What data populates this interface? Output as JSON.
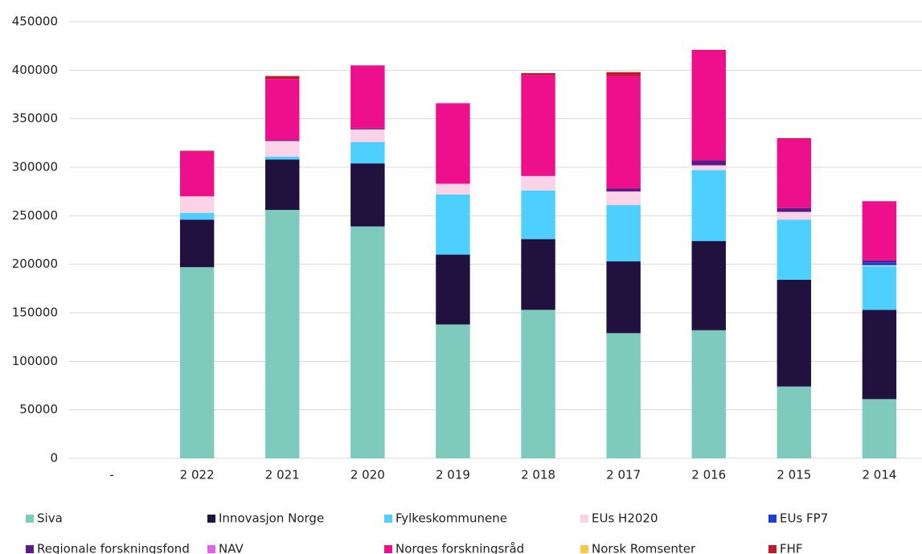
{
  "chart_data": {
    "type": "stacked_bar",
    "categories": [
      "-",
      "2 022",
      "2 021",
      "2 020",
      "2 019",
      "2 018",
      "2 017",
      "2 016",
      "2 015",
      "2 014"
    ],
    "series": [
      {
        "name": "Siva",
        "color": "#7ecbbd",
        "values": [
          null,
          197000,
          256000,
          239000,
          138000,
          153000,
          129000,
          132000,
          74000,
          61000
        ]
      },
      {
        "name": "Innovasjon Norge",
        "color": "#21113f",
        "values": [
          null,
          49000,
          52000,
          65000,
          72000,
          73000,
          74000,
          92000,
          110000,
          92000
        ]
      },
      {
        "name": "Fylkeskommunene",
        "color": "#4dcfff",
        "values": [
          null,
          7000,
          3000,
          22000,
          62000,
          50000,
          58000,
          73000,
          62000,
          45000
        ]
      },
      {
        "name": "EUs H2020",
        "color": "#fad4e6",
        "values": [
          null,
          17000,
          16000,
          13000,
          11000,
          15000,
          14000,
          5000,
          8000,
          1000
        ]
      },
      {
        "name": "EUs FP7",
        "color": "#1b3fcf",
        "values": [
          null,
          0,
          0,
          0,
          0,
          0,
          0,
          0,
          0,
          3000
        ]
      },
      {
        "name": "Regionale forskningsfond",
        "color": "#5a1a8a",
        "values": [
          null,
          0,
          1000,
          1000,
          0,
          0,
          3000,
          5000,
          4000,
          2000
        ]
      },
      {
        "name": "NAV",
        "color": "#e060f0",
        "values": [
          null,
          0,
          0,
          0,
          0,
          0,
          0,
          0,
          0,
          0
        ]
      },
      {
        "name": "Norges forskningsråd",
        "color": "#ee0f8c",
        "values": [
          null,
          46000,
          63000,
          65000,
          83000,
          104000,
          116000,
          114000,
          71000,
          61000
        ]
      },
      {
        "name": "Norsk Romsenter",
        "color": "#f7c84a",
        "values": [
          null,
          0,
          0,
          0,
          0,
          0,
          0,
          0,
          0,
          0
        ]
      },
      {
        "name": "FHF",
        "color": "#c0192a",
        "values": [
          null,
          1000,
          3000,
          0,
          0,
          2000,
          4000,
          0,
          1000,
          0
        ]
      }
    ],
    "ylim": [
      0,
      450000
    ],
    "yticks": [
      0,
      50000,
      100000,
      150000,
      200000,
      250000,
      300000,
      350000,
      400000,
      450000
    ],
    "grid": true,
    "legend": "bottom"
  }
}
